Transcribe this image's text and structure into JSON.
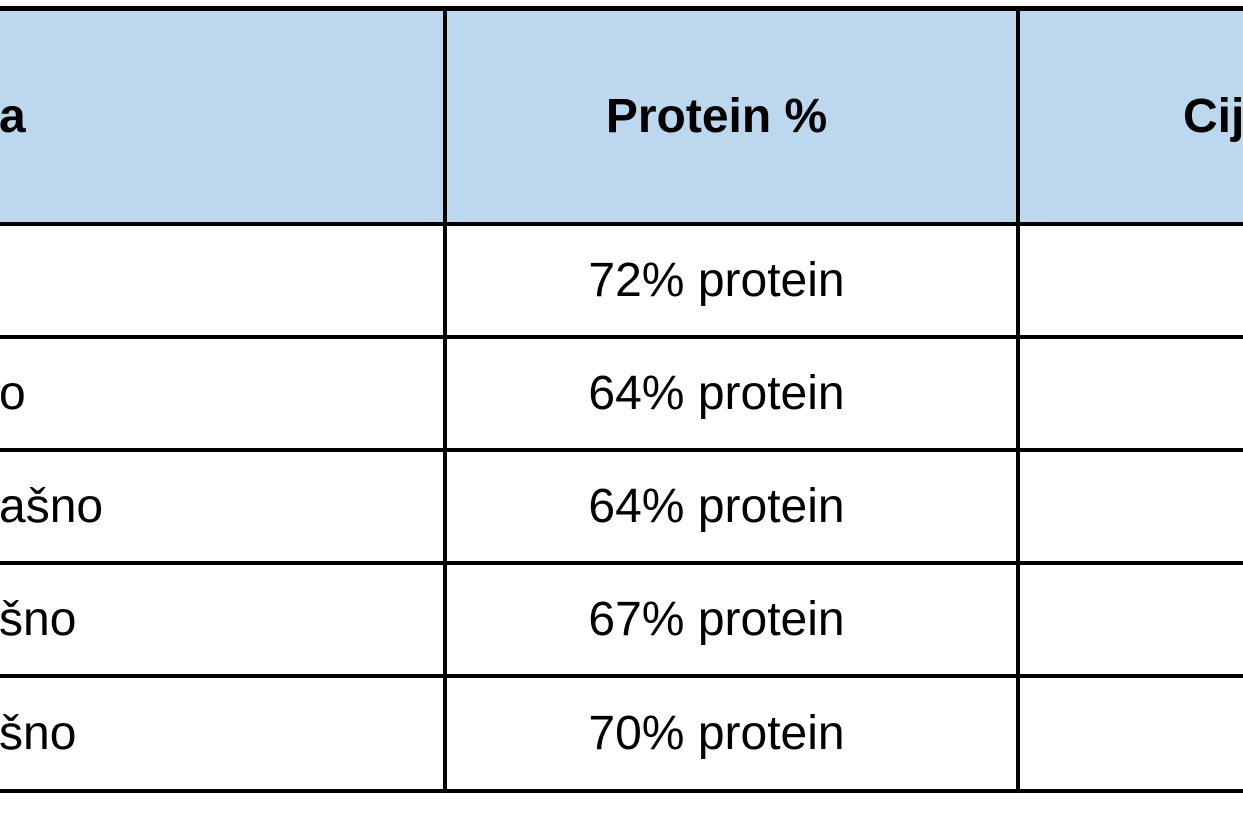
{
  "table": {
    "headers": {
      "name": "a",
      "protein": "Protein %",
      "price": "Cij"
    },
    "rows": [
      {
        "name": "",
        "protein": "72% protein",
        "price": ""
      },
      {
        "name": "o",
        "protein": "64% protein",
        "price": ""
      },
      {
        "name": "ašno",
        "protein": "64% protein",
        "price": ""
      },
      {
        "name": "šno",
        "protein": "67% protein",
        "price": ""
      },
      {
        "name": "šno",
        "protein": "70% protein",
        "price": ""
      }
    ],
    "colors": {
      "header_bg": "#BDD7EE",
      "cell_bg": "#FFFFFF",
      "border": "#000000",
      "text": "#000000",
      "page_bg": "#FFFFFF"
    }
  }
}
